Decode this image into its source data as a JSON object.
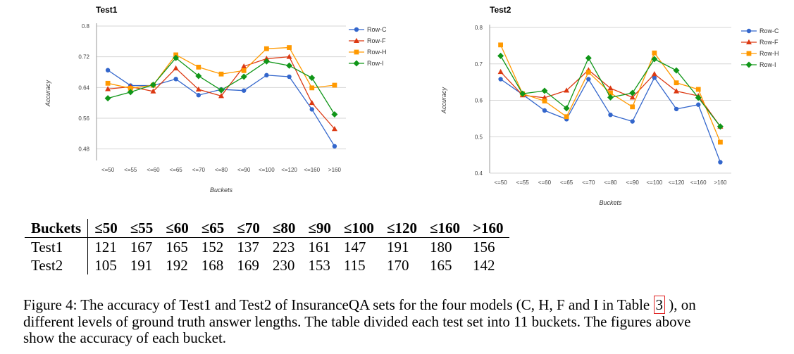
{
  "chart_data": [
    {
      "type": "line",
      "title": "Test1",
      "xlabel": "Buckets",
      "ylabel": "Accuracy",
      "categories": [
        "<=50",
        "<=55",
        "<=60",
        "<=65",
        "<=70",
        "<=80",
        "<=90",
        "<=100",
        "<=120",
        "<=160",
        ">160"
      ],
      "yticks": [
        "0.8",
        "0.72",
        "0.64",
        "0.56",
        "0.48"
      ],
      "ylim": [
        0.45,
        0.8
      ],
      "grid": true,
      "legend_position": "right",
      "series": [
        {
          "name": "Row-C",
          "color": "#3366cc",
          "marker": "circle",
          "values": [
            0.685,
            0.645,
            0.645,
            0.662,
            0.62,
            0.635,
            0.632,
            0.672,
            0.668,
            0.583,
            0.487
          ]
        },
        {
          "name": "Row-F",
          "color": "#dc3912",
          "marker": "triangle",
          "values": [
            0.636,
            0.642,
            0.63,
            0.69,
            0.635,
            0.618,
            0.695,
            0.715,
            0.72,
            0.6,
            0.532
          ]
        },
        {
          "name": "Row-H",
          "color": "#ff9900",
          "marker": "square",
          "values": [
            0.651,
            0.638,
            0.646,
            0.725,
            0.693,
            0.675,
            0.684,
            0.741,
            0.744,
            0.639,
            0.646
          ]
        },
        {
          "name": "Row-I",
          "color": "#109618",
          "marker": "diamond",
          "values": [
            0.612,
            0.628,
            0.647,
            0.717,
            0.67,
            0.633,
            0.668,
            0.708,
            0.697,
            0.665,
            0.57
          ]
        }
      ]
    },
    {
      "type": "line",
      "title": "Test2",
      "xlabel": "Buckets",
      "ylabel": "Accuracy",
      "categories": [
        "<=50",
        "<=55",
        "<=60",
        "<=65",
        "<=70",
        "<=80",
        "<=90",
        "<=100",
        "<=120",
        "<=160",
        ">160"
      ],
      "yticks": [
        "0.8",
        "0.7",
        "0.6",
        "0.5",
        "0.4"
      ],
      "ylim": [
        0.4,
        0.8
      ],
      "grid": true,
      "legend_position": "right",
      "series": [
        {
          "name": "Row-C",
          "color": "#3366cc",
          "marker": "circle",
          "values": [
            0.658,
            0.616,
            0.572,
            0.548,
            0.658,
            0.56,
            0.542,
            0.662,
            0.576,
            0.588,
            0.43
          ]
        },
        {
          "name": "Row-F",
          "color": "#dc3912",
          "marker": "triangle",
          "values": [
            0.678,
            0.614,
            0.607,
            0.627,
            0.683,
            0.633,
            0.608,
            0.672,
            0.625,
            0.612,
            0.528
          ]
        },
        {
          "name": "Row-H",
          "color": "#ff9900",
          "marker": "square",
          "values": [
            0.752,
            0.618,
            0.598,
            0.555,
            0.677,
            0.62,
            0.582,
            0.73,
            0.648,
            0.63,
            0.485
          ]
        },
        {
          "name": "Row-I",
          "color": "#109618",
          "marker": "diamond",
          "values": [
            0.722,
            0.618,
            0.626,
            0.578,
            0.716,
            0.608,
            0.62,
            0.713,
            0.682,
            0.607,
            0.528
          ]
        }
      ]
    }
  ],
  "table": {
    "headers": [
      "Buckets",
      "≤50",
      "≤55",
      "≤60",
      "≤65",
      "≤70",
      "≤80",
      "≤90",
      "≤100",
      "≤120",
      "≤160",
      ">160"
    ],
    "rows": [
      [
        "Test1",
        "121",
        "167",
        "165",
        "152",
        "137",
        "223",
        "161",
        "147",
        "191",
        "180",
        "156"
      ],
      [
        "Test2",
        "105",
        "191",
        "192",
        "168",
        "169",
        "230",
        "153",
        "115",
        "170",
        "165",
        "142"
      ]
    ]
  },
  "caption": {
    "before": "Figure 4: The accuracy of Test1 and Test2 of InsuranceQA sets for the four models (C, H, F and I in Table ",
    "ref": "3",
    "after": " ), on different levels of ground truth answer lengths. The table divided each test set into 11 buckets. The figures above show the accuracy of each bucket."
  }
}
